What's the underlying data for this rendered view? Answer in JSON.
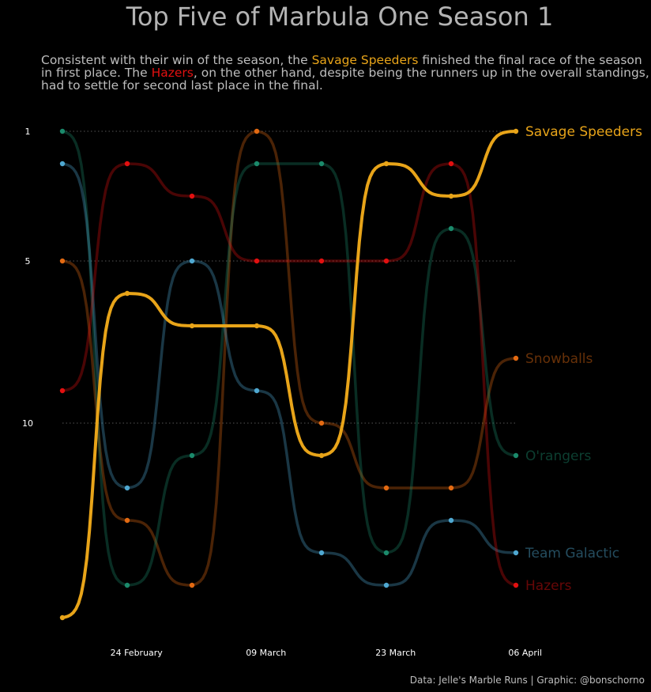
{
  "title": "Top Five of Marbula One Season 1",
  "subtitle": {
    "part1": "Consistent with their win of the season, the ",
    "highlight1": "Savage Speeders",
    "part2": " finished the final race of the season in first place. The ",
    "highlight2": "Hazers",
    "part3": ", on the other hand, despite being the runners up in the overall standings, had to settle for second last place in the final."
  },
  "caption": "Data: Jelle's Marble Runs | Graphic: @bonschorno",
  "chart_data": {
    "type": "line",
    "chart_style": "bump chart",
    "x": [
      "2020-02-16",
      "2020-02-23",
      "2020-03-01",
      "2020-03-08",
      "2020-03-15",
      "2020-03-22",
      "2020-03-29",
      "2020-04-05"
    ],
    "x_tick_labels": [
      {
        "x": "2020-02-24",
        "label": "24 February"
      },
      {
        "x": "2020-03-09",
        "label": "09 March"
      },
      {
        "x": "2020-03-23",
        "label": "23 March"
      },
      {
        "x": "2020-04-06",
        "label": "06 April"
      }
    ],
    "y_ticks": [
      1,
      5,
      10
    ],
    "y_reversed": true,
    "ylim": [
      1,
      16
    ],
    "grid": "dotted horizontal lines at y ticks",
    "series": [
      {
        "name": "Savage Speeders",
        "color": "#E8A419",
        "emphasis": true,
        "values": [
          16,
          6,
          7,
          7,
          11,
          2,
          3,
          1
        ]
      },
      {
        "name": "Snowballs",
        "color": "#E36A12",
        "values": [
          5,
          13,
          15,
          1,
          10,
          12,
          12,
          8
        ]
      },
      {
        "name": "O'rangers",
        "color": "#1B8A6B",
        "values": [
          1,
          15,
          11,
          2,
          2,
          14,
          4,
          11
        ]
      },
      {
        "name": "Team Galactic",
        "color": "#4FA8D1",
        "values": [
          2,
          12,
          5,
          9,
          14,
          15,
          13,
          14
        ]
      },
      {
        "name": "Hazers",
        "color": "#E21010",
        "values": [
          9,
          2,
          3,
          5,
          5,
          5,
          2,
          15
        ]
      }
    ]
  }
}
